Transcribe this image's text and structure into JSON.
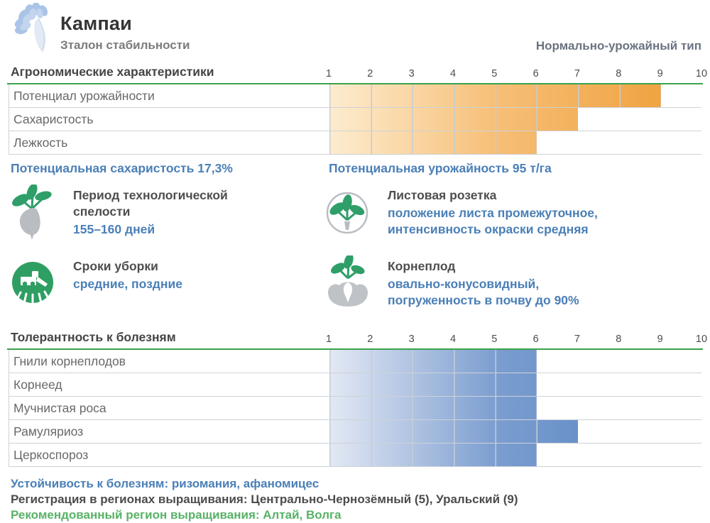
{
  "header": {
    "title": "Кампаи",
    "subtitle": "Зталон стабильности",
    "type_label": "Нормально-урожайный тип"
  },
  "colors": {
    "section_rule_green": "#3aa24c",
    "orange_bar_from": "#fdeccf",
    "orange_bar_to": "#ee9c33",
    "blue_bar_from": "#e3e9f4",
    "blue_bar_to": "#4f81be",
    "blue_text": "#4a7fb7",
    "green_text": "#57b266",
    "gridline": "#c6ccd4"
  },
  "chart_data": [
    {
      "type": "bar",
      "title": "Агрономические характеристики",
      "categories": [
        "Потенциал урожайности",
        "Сахаристость",
        "Лежкость"
      ],
      "values": [
        9,
        7,
        6
      ],
      "scale_min": 1,
      "scale_max": 10,
      "tick_labels": [
        "1",
        "2",
        "3",
        "4",
        "5",
        "6",
        "7",
        "8",
        "9",
        "10"
      ],
      "palette": "orange",
      "color_from": "#fdeccf",
      "color_mid": "#f6bf77",
      "color_to": "#ee9c33",
      "grid": true,
      "legend": "none",
      "orientation": "horizontal"
    },
    {
      "type": "bar",
      "title": "Толерантность к болезням",
      "categories": [
        "Гнили корнеплодов",
        "Корнеед",
        "Мучнистая роса",
        "Рамуляриоз",
        "Церкоспороз"
      ],
      "values": [
        6,
        6,
        6,
        7,
        6
      ],
      "scale_min": 1,
      "scale_max": 10,
      "tick_labels": [
        "1",
        "2",
        "3",
        "4",
        "5",
        "6",
        "7",
        "8",
        "9",
        "10"
      ],
      "palette": "blue",
      "color_from": "#e3e9f4",
      "color_mid": "#7b9dd0",
      "color_to": "#4f81be",
      "grid": true,
      "legend": "none",
      "orientation": "horizontal"
    }
  ],
  "annotations": {
    "sugar": "Потенциальная сахаристость 17,3%",
    "yield": "Потенциальная урожайность 95 т/га"
  },
  "features": [
    {
      "icon": "beet-icon",
      "title": "Период технологической\nспелости",
      "value": "155–160 дней"
    },
    {
      "icon": "leaf-rosette-icon",
      "title": "Листовая розетка",
      "value": "положение листа промежуточное,\nинтенсивность окраски средняя"
    },
    {
      "icon": "harvester-icon",
      "title": "Сроки уборки",
      "value": "средние, поздние"
    },
    {
      "icon": "root-in-soil-icon",
      "title": "Корнеплод",
      "value": "овально-конусовидный,\nпогруженность в почву до 90%"
    }
  ],
  "footer": {
    "resistance": "Устойчивость к болезням: ризомания, афаномицес",
    "registration": "Регистрация в регионах выращивания: Центрально-Чернозёмный (5), Уральский (9)",
    "recommended": "Рекомендованный регион выращивания: Алтай, Волга"
  }
}
